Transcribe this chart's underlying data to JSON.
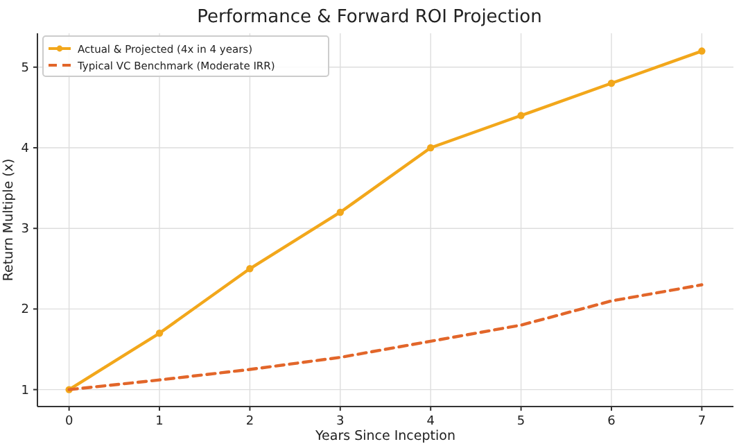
{
  "chart_data": {
    "type": "line",
    "title": "Performance & Forward ROI Projection",
    "xlabel": "Years Since Inception",
    "ylabel": "Return Multiple (x)",
    "x": [
      0,
      1,
      2,
      3,
      4,
      5,
      6,
      7
    ],
    "series": [
      {
        "name": "Actual & Projected (4x in 4 years)",
        "color": "#f2a71b",
        "marker": "circle",
        "line_style": "solid",
        "values": [
          1,
          1.7,
          2.5,
          3.2,
          4,
          4.4,
          4.8,
          5.2
        ]
      },
      {
        "name": "Typical VC Benchmark (Moderate IRR)",
        "color": "#e2662a",
        "marker": "none",
        "line_style": "dashed",
        "values": [
          1,
          1.12,
          1.25,
          1.4,
          1.6,
          1.8,
          2.1,
          2.3
        ]
      }
    ],
    "xlim": [
      -0.35,
      7.35
    ],
    "ylim": [
      0.79,
      5.42
    ],
    "xticks": [
      0,
      1,
      2,
      3,
      4,
      5,
      6,
      7
    ],
    "yticks": [
      1,
      2,
      3,
      4,
      5
    ],
    "grid": true,
    "legend": "top left"
  }
}
